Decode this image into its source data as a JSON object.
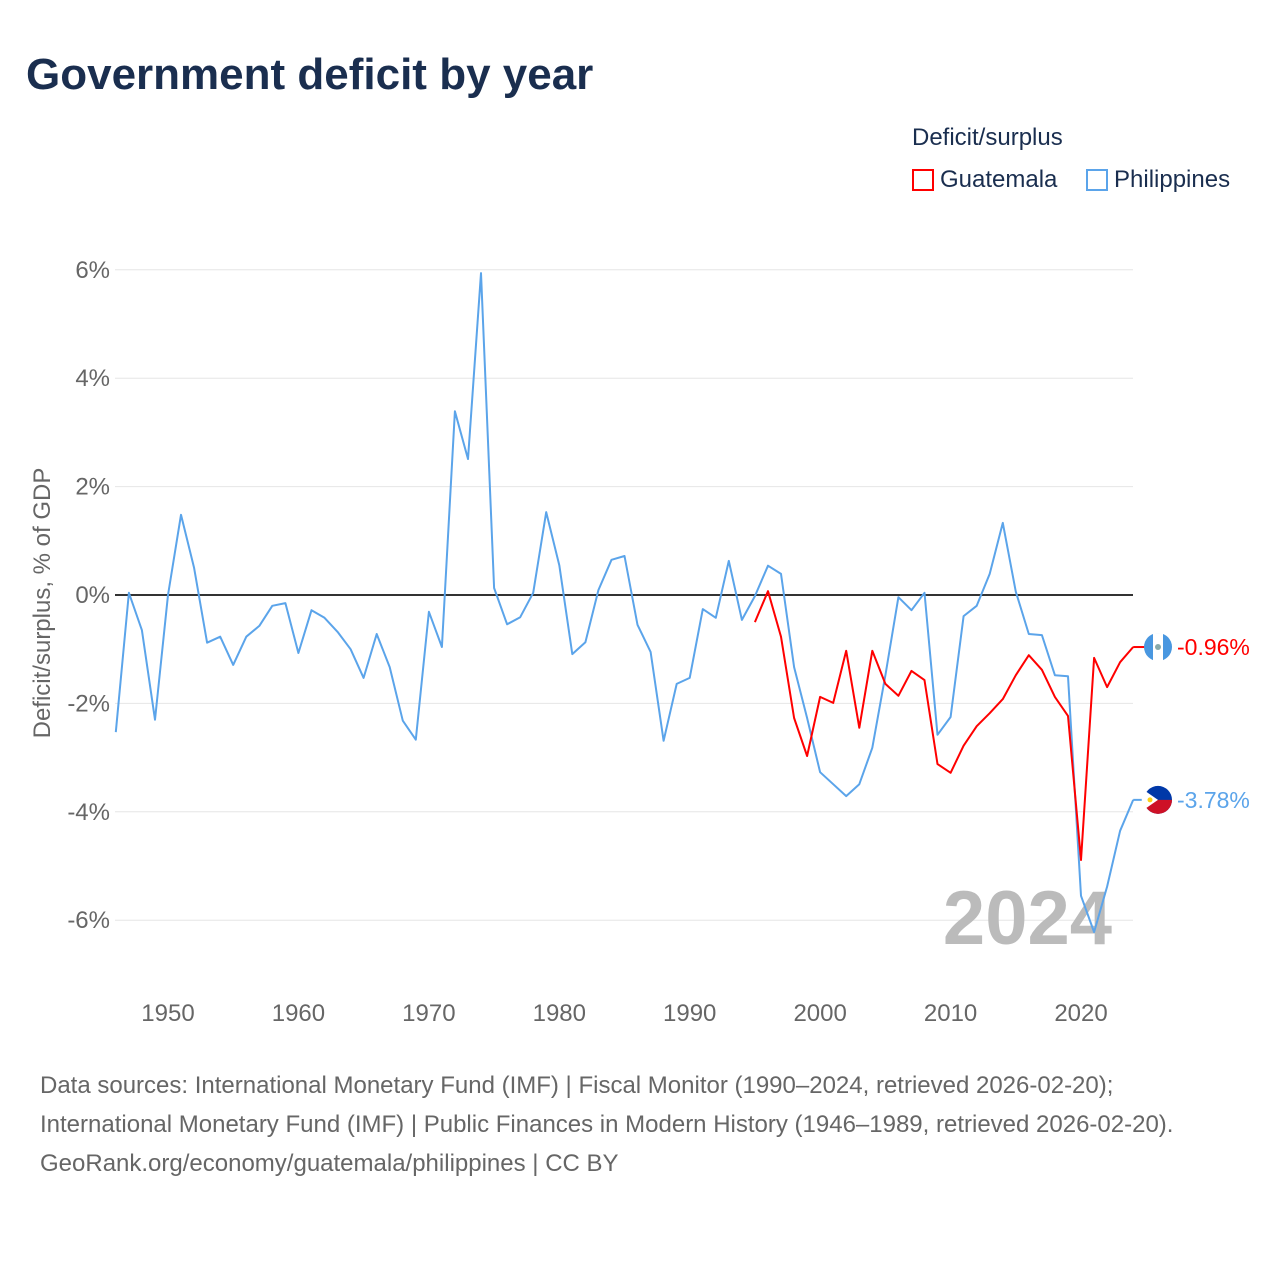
{
  "title": "Government deficit by year",
  "legend": {
    "title": "Deficit/surplus",
    "items": [
      "Guatemala",
      "Philippines"
    ]
  },
  "watermark_year": "2024",
  "source_lines": [
    "Data sources: International Monetary Fund (IMF) | Fiscal Monitor (1990–2024, retrieved 2026-02-20); International Monetary Fund (IMF) | Public Finances in Modern History (1946–1989, retrieved 2026-02-20).",
    "GeoRank.org/economy/guatemala/philippines | CC BY"
  ],
  "chart_data": {
    "type": "line",
    "title": "Government deficit by year",
    "xlabel": "",
    "ylabel": "Deficit/surplus, % of GDP",
    "xlim": [
      1946,
      2024
    ],
    "ylim": [
      -7.1,
      6.4
    ],
    "x_ticks": [
      1950,
      1960,
      1970,
      1980,
      1990,
      2000,
      2010,
      2020
    ],
    "y_ticks": [
      6,
      4,
      2,
      0,
      -2,
      -4,
      -6
    ],
    "y_tick_labels": [
      "6%",
      "4%",
      "2%",
      "0%",
      "-2%",
      "-4%",
      "-6%"
    ],
    "legend_position": "top-right",
    "grid": true,
    "series": [
      {
        "name": "Guatemala",
        "color": "#ff0000",
        "end_label": "-0.96%",
        "x_start": 1995,
        "values": [
          -0.5,
          0.07,
          -0.77,
          -2.27,
          -2.97,
          -1.88,
          -1.99,
          -1.03,
          -2.45,
          -1.03,
          -1.64,
          -1.86,
          -1.4,
          -1.57,
          -3.12,
          -3.28,
          -2.78,
          -2.42,
          -2.18,
          -1.92,
          -1.48,
          -1.11,
          -1.38,
          -1.88,
          -2.23,
          -4.89,
          -1.16,
          -1.7,
          -1.24,
          -0.96
        ]
      },
      {
        "name": "Philippines",
        "color": "#5ba4ea",
        "end_label": "-3.78%",
        "x_start": 1946,
        "values": [
          -2.53,
          0.04,
          -0.65,
          -2.3,
          0,
          1.48,
          0.5,
          -0.88,
          -0.77,
          -1.29,
          -0.77,
          -0.57,
          -0.2,
          -0.15,
          -1.07,
          -0.28,
          -0.42,
          -0.68,
          -1.0,
          -1.53,
          -0.72,
          -1.33,
          -2.32,
          -2.67,
          -0.31,
          -0.96,
          3.39,
          2.51,
          5.94,
          0.13,
          -0.54,
          -0.41,
          0.04,
          1.53,
          0.55,
          -1.09,
          -0.87,
          0.09,
          0.65,
          0.72,
          -0.55,
          -1.05,
          -2.69,
          -1.64,
          -1.53,
          -0.26,
          -0.42,
          0.63,
          -0.46,
          -0.02,
          0.54,
          0.39,
          -1.33,
          -2.27,
          -3.27,
          -3.49,
          -3.71,
          -3.49,
          -2.82,
          -1.48,
          -0.04,
          -0.28,
          0.04,
          -2.58,
          -2.25,
          -0.39,
          -0.2,
          0.39,
          1.33,
          0.06,
          -0.72,
          -0.74,
          -1.48,
          -1.5,
          -5.55,
          -6.22,
          -5.38,
          -4.35,
          -3.78
        ]
      }
    ]
  }
}
